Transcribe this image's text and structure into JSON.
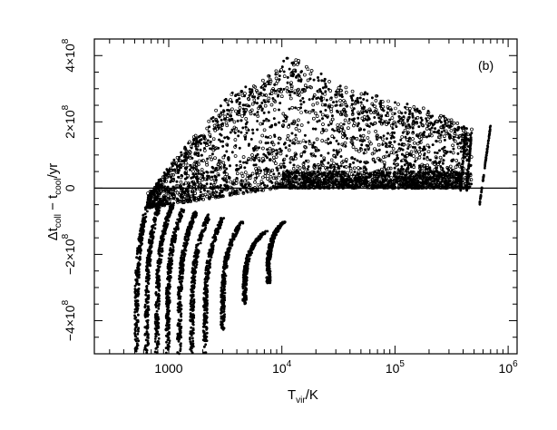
{
  "chart_data": {
    "type": "scatter",
    "panel_label": "(b)",
    "x_scale": "log",
    "xlim": [
      220,
      1200000
    ],
    "ylim": [
      -500000000,
      450000000
    ],
    "x_ticks": [
      {
        "value": 1000,
        "label": "1000",
        "base": "",
        "exp": ""
      },
      {
        "value": 10000,
        "label": "",
        "base": "10",
        "exp": "4"
      },
      {
        "value": 100000,
        "label": "",
        "base": "10",
        "exp": "5"
      },
      {
        "value": 1000000,
        "label": "",
        "base": "10",
        "exp": "6"
      }
    ],
    "y_ticks": [
      {
        "value": -400000000,
        "mant": "−4×10",
        "exp": "8"
      },
      {
        "value": -200000000,
        "mant": "−2×10",
        "exp": "8"
      },
      {
        "value": 0,
        "mant": "0",
        "exp": ""
      },
      {
        "value": 200000000,
        "mant": "2×10",
        "exp": "8"
      },
      {
        "value": 400000000,
        "mant": "4×10",
        "exp": "8"
      }
    ],
    "xlabel": {
      "main": "T",
      "sub": "vir",
      "rest": "/K"
    },
    "ylabel": {
      "delta": "Δt",
      "sub1": "coll",
      "mid": " − t",
      "sub2": "cool",
      "rest": "/yr"
    },
    "reference_line_y": 0,
    "cluster_tracks": [
      {
        "x_bottom": 520,
        "x_top": 700,
        "y_top": -20000000
      },
      {
        "x_bottom": 640,
        "x_top": 860,
        "y_top": -35000000
      },
      {
        "x_bottom": 790,
        "x_top": 1080,
        "y_top": -50000000
      },
      {
        "x_bottom": 980,
        "x_top": 1350,
        "y_top": -60000000
      },
      {
        "x_bottom": 1240,
        "x_top": 1750,
        "y_top": -70000000
      },
      {
        "x_bottom": 1600,
        "x_top": 2300,
        "y_top": -80000000
      },
      {
        "x_bottom": 2100,
        "x_top": 3000,
        "y_top": -90000000
      },
      {
        "x_bottom": 3000,
        "x_top": 4500,
        "y_top": -100000000
      },
      {
        "x_bottom": 4700,
        "x_top": 7200,
        "y_top": -130000000
      },
      {
        "x_bottom": 7600,
        "x_top": 10500,
        "y_top": -100000000
      }
    ],
    "track_bottoms": [
      -500000000,
      -500000000,
      -500000000,
      -500000000,
      -500000000,
      -500000000,
      -500000000,
      -430000000,
      -350000000,
      -290000000
    ],
    "upper_envelope": [
      {
        "x": 700,
        "y": -10000000
      },
      {
        "x": 1000,
        "y": 60000000
      },
      {
        "x": 1500,
        "y": 130000000
      },
      {
        "x": 2500,
        "y": 220000000
      },
      {
        "x": 4000,
        "y": 290000000
      },
      {
        "x": 6000,
        "y": 300000000
      },
      {
        "x": 12000,
        "y": 390000000
      },
      {
        "x": 30000,
        "y": 300000000
      },
      {
        "x": 80000,
        "y": 260000000
      },
      {
        "x": 200000,
        "y": 230000000
      },
      {
        "x": 450000,
        "y": 170000000
      }
    ],
    "right_streaks": [
      {
        "x1": 380000,
        "y1": -10000000,
        "x2": 420000,
        "y2": 170000000
      },
      {
        "x1": 430000,
        "y1": -10000000,
        "x2": 470000,
        "y2": 150000000
      },
      {
        "x1": 560000,
        "y1": -50000000,
        "x2": 700000,
        "y2": 190000000
      }
    ]
  }
}
